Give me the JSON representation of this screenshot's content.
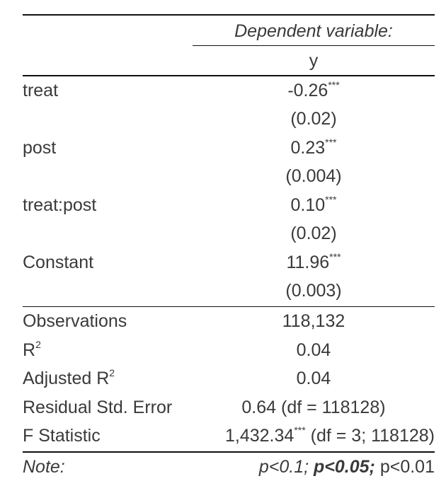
{
  "header": {
    "dependent_variable": "Dependent variable:",
    "y_label": "y"
  },
  "coefficients": [
    {
      "name": "treat",
      "estimate": "-0.26",
      "stars": "***",
      "se": "(0.02)"
    },
    {
      "name": "post",
      "estimate": "0.23",
      "stars": "***",
      "se": "(0.004)"
    },
    {
      "name": "treat:post",
      "estimate": "0.10",
      "stars": "***",
      "se": "(0.02)"
    },
    {
      "name": "Constant",
      "estimate": "11.96",
      "stars": "***",
      "se": "(0.003)"
    }
  ],
  "stats": {
    "observations_label": "Observations",
    "observations": "118,132",
    "r2_label": "R",
    "r2_sup": "2",
    "r2": "0.04",
    "adj_r2_label": "Adjusted R",
    "adj_r2_sup": "2",
    "adj_r2": "0.04",
    "rse_label": "Residual Std. Error",
    "rse": "0.64 (df = 118128)",
    "f_label": "F Statistic",
    "f_value": "1,432.34",
    "f_stars": "***",
    "f_df": " (df = 3; 118128)"
  },
  "note": {
    "label": "Note:",
    "p1": "p<0.1;",
    "p2": "p<0.05;",
    "p3": "p<0.01"
  }
}
